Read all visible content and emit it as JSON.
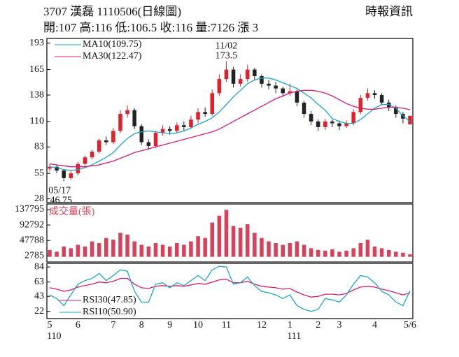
{
  "header": {
    "title": "3707  漢磊 1110506(日線圖)",
    "source": "時報資訊",
    "quote": "開:107 高:116 低:106.5 收:116 量:7126 漲 3"
  },
  "chart_data": [
    {
      "type": "candlestick",
      "up_color": "#e0202a",
      "down_color": "#222222",
      "open": [
        60,
        62,
        58,
        50,
        55,
        65,
        72,
        78,
        90,
        88,
        100,
        118,
        122,
        105,
        88,
        84,
        98,
        102,
        100,
        106,
        104,
        112,
        120,
        118,
        140,
        155,
        165,
        150,
        155,
        165,
        158,
        150,
        148,
        145,
        140,
        142,
        130,
        118,
        110,
        104,
        110,
        108,
        105,
        108,
        120,
        135,
        140,
        138,
        130,
        125,
        118,
        107
      ],
      "high": [
        65,
        64,
        59,
        58,
        67,
        74,
        80,
        92,
        94,
        103,
        122,
        127,
        124,
        107,
        91,
        100,
        106,
        105,
        109,
        110,
        116,
        124,
        125,
        144,
        160,
        173.5,
        168,
        160,
        170,
        167,
        160,
        154,
        152,
        147,
        150,
        144,
        132,
        121,
        112,
        113,
        112,
        111,
        111,
        123,
        138,
        145,
        143,
        140,
        133,
        127,
        120,
        116
      ],
      "low": [
        57,
        55,
        46.75,
        48,
        53,
        63,
        70,
        76,
        85,
        86,
        98,
        114,
        102,
        85,
        80,
        82,
        95,
        96,
        98,
        100,
        102,
        108,
        115,
        116,
        137,
        152,
        146,
        147,
        152,
        154,
        146,
        144,
        140,
        136,
        137,
        126,
        114,
        106,
        100,
        101,
        104,
        101,
        103,
        106,
        118,
        132,
        134,
        127,
        121,
        114,
        108,
        106.5
      ],
      "close": [
        62,
        58,
        50,
        55,
        65,
        72,
        78,
        90,
        88,
        100,
        118,
        122,
        105,
        88,
        84,
        98,
        102,
        100,
        106,
        104,
        112,
        120,
        118,
        140,
        155,
        165,
        150,
        155,
        165,
        158,
        150,
        148,
        145,
        140,
        142,
        130,
        118,
        110,
        104,
        110,
        108,
        105,
        108,
        120,
        135,
        140,
        138,
        130,
        125,
        118,
        113,
        116
      ],
      "series": [
        {
          "name": "MA10(109.75)",
          "color": "#1aa6c9",
          "values": [
            62,
            61,
            59,
            58,
            59,
            61,
            64,
            68,
            72,
            77,
            85,
            92,
            97,
            99,
            100,
            99,
            98,
            97,
            98,
            100,
            103,
            107,
            110,
            114,
            120,
            128,
            136,
            143,
            150,
            154,
            156,
            156,
            154,
            151,
            148,
            145,
            140,
            135,
            128,
            122,
            113,
            110,
            108,
            108,
            112,
            118,
            124,
            128,
            128,
            124,
            116,
            109.75
          ]
        },
        {
          "name": "MA30(122.47)",
          "color": "#d81b78",
          "values": [
            65,
            64,
            63,
            62,
            62,
            62,
            63,
            64,
            66,
            68,
            71,
            74,
            77,
            79,
            81,
            83,
            85,
            87,
            89,
            91,
            93,
            95,
            97,
            99,
            102,
            106,
            110,
            114,
            118,
            122,
            126,
            130,
            134,
            137,
            140,
            142,
            143,
            143,
            142,
            140,
            137,
            133,
            129,
            126,
            124,
            123,
            123,
            124,
            125,
            125,
            124,
            122.47
          ]
        }
      ],
      "ylim": [
        24,
        198
      ],
      "yticks": [
        28,
        55,
        83,
        110,
        138,
        165,
        193
      ],
      "high_note": [
        "11/02",
        "173.5"
      ],
      "low_note": [
        "05/17",
        "46.75"
      ]
    },
    {
      "type": "bar",
      "title": "成交量(張)",
      "color": "#d9405a",
      "values": [
        20000,
        15000,
        30000,
        25000,
        35000,
        30000,
        45000,
        40000,
        55000,
        50000,
        70000,
        65000,
        45000,
        35000,
        30000,
        40000,
        35000,
        30000,
        40000,
        35000,
        45000,
        60000,
        55000,
        100000,
        120000,
        137000,
        90000,
        85000,
        95000,
        70000,
        55000,
        45000,
        40000,
        35000,
        40000,
        45000,
        35000,
        25000,
        20000,
        18000,
        22000,
        15000,
        18000,
        25000,
        40000,
        50000,
        30000,
        25000,
        20000,
        15000,
        12000,
        7126
      ],
      "ylim": [
        -15000,
        154000
      ],
      "yticks": [
        2785,
        47788,
        92792,
        137795
      ]
    },
    {
      "type": "line",
      "categories": [
        "5",
        null,
        null,
        null,
        "6",
        null,
        null,
        null,
        null,
        "7",
        null,
        null,
        null,
        "8",
        null,
        null,
        null,
        "9",
        null,
        null,
        null,
        "10",
        null,
        null,
        null,
        "11",
        null,
        null,
        null,
        null,
        "12",
        null,
        null,
        null,
        "1",
        null,
        null,
        null,
        "2",
        null,
        null,
        "3",
        null,
        null,
        null,
        null,
        "4",
        null,
        null,
        null,
        null,
        "5/6"
      ],
      "year_labels": [
        {
          "index": 0,
          "label": "110"
        },
        {
          "index": 34,
          "label": "111"
        }
      ],
      "series": [
        {
          "name": "RSI30(47.85)",
          "color": "#d81b78",
          "values": [
            55,
            53,
            50,
            52,
            56,
            58,
            60,
            63,
            62,
            64,
            68,
            68,
            60,
            55,
            54,
            57,
            58,
            57,
            58,
            57,
            59,
            61,
            60,
            63,
            66,
            67,
            62,
            62,
            64,
            60,
            57,
            56,
            55,
            53,
            54,
            49,
            45,
            42,
            43,
            46,
            46,
            45,
            47,
            52,
            56,
            57,
            56,
            53,
            51,
            48,
            45,
            47.85
          ]
        },
        {
          "name": "RSI10(50.90)",
          "color": "#1aa6c9",
          "values": [
            45,
            40,
            30,
            45,
            60,
            65,
            68,
            75,
            65,
            72,
            80,
            78,
            50,
            35,
            35,
            60,
            62,
            55,
            62,
            58,
            65,
            72,
            65,
            80,
            85,
            84,
            60,
            62,
            70,
            58,
            50,
            48,
            45,
            40,
            45,
            30,
            25,
            22,
            25,
            40,
            38,
            35,
            45,
            60,
            72,
            70,
            62,
            50,
            45,
            35,
            30,
            50.9
          ]
        }
      ],
      "ylim": [
        12,
        89
      ],
      "yticks": [
        22,
        43,
        63,
        84
      ]
    }
  ]
}
